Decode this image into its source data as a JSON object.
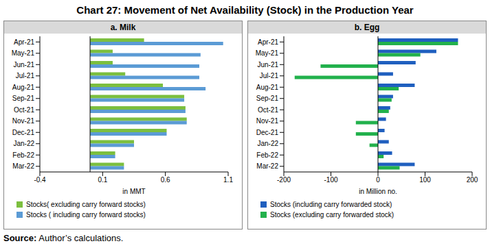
{
  "title": "Chart 27: Movement of Net Availability (Stock) in the Production Year",
  "source_label": "Source:",
  "source_text": "Author’s calculations.",
  "chart_data": [
    {
      "type": "bar",
      "orientation": "horizontal",
      "title": "a. Milk",
      "x_label": "in MMT",
      "categories": [
        "Apr-21",
        "May-21",
        "Jun-21",
        "Jul-21",
        "Aug-21",
        "Sep-21",
        "Oct-21",
        "Nov-21",
        "Dec-21",
        "Jan-22",
        "Feb-22",
        "Mar-22"
      ],
      "series": [
        {
          "name": "Stocks( excluding carry forward stocks)",
          "color": "#7cbf3f",
          "values": [
            0.43,
            0.18,
            0.18,
            0.28,
            0.58,
            0.75,
            0.76,
            0.77,
            0.61,
            0.35,
            0.2,
            0.27
          ]
        },
        {
          "name": "Stocks ( including carry forward stocks)",
          "color": "#5b9bd5",
          "values": [
            1.06,
            0.88,
            0.87,
            0.87,
            0.92,
            0.75,
            0.76,
            0.77,
            0.61,
            0.35,
            0.2,
            0.27
          ]
        }
      ],
      "xlim": [
        -0.4,
        1.1
      ],
      "xticks": [
        -0.4,
        0.1,
        0.6,
        1.1
      ],
      "grid": false,
      "legend": "bottom"
    },
    {
      "type": "bar",
      "orientation": "horizontal",
      "title": "b. Egg",
      "x_label": "in Million no.",
      "categories": [
        "Apr-21",
        "May-21",
        "Jun-21",
        "Jul-21",
        "Aug-21",
        "Sep-21",
        "Oct-21",
        "Nov-21",
        "Dec-21",
        "Jan-22",
        "Feb-22",
        "Mar-22"
      ],
      "series": [
        {
          "name": "Stocks (including carry forwarded stock)",
          "color": "#1f5fbf",
          "values": [
            170,
            124,
            80,
            32,
            78,
            32,
            26,
            17,
            14,
            23,
            30,
            78
          ]
        },
        {
          "name": "Stocks (excluding carry forwarded stock)",
          "color": "#22b14c",
          "values": [
            170,
            90,
            -122,
            -177,
            44,
            29,
            23,
            -47,
            -47,
            -18,
            12,
            46
          ]
        }
      ],
      "xlim": [
        -200,
        200
      ],
      "xticks": [
        -200,
        -100,
        0,
        100,
        200
      ],
      "grid": false,
      "legend": "bottom"
    }
  ]
}
